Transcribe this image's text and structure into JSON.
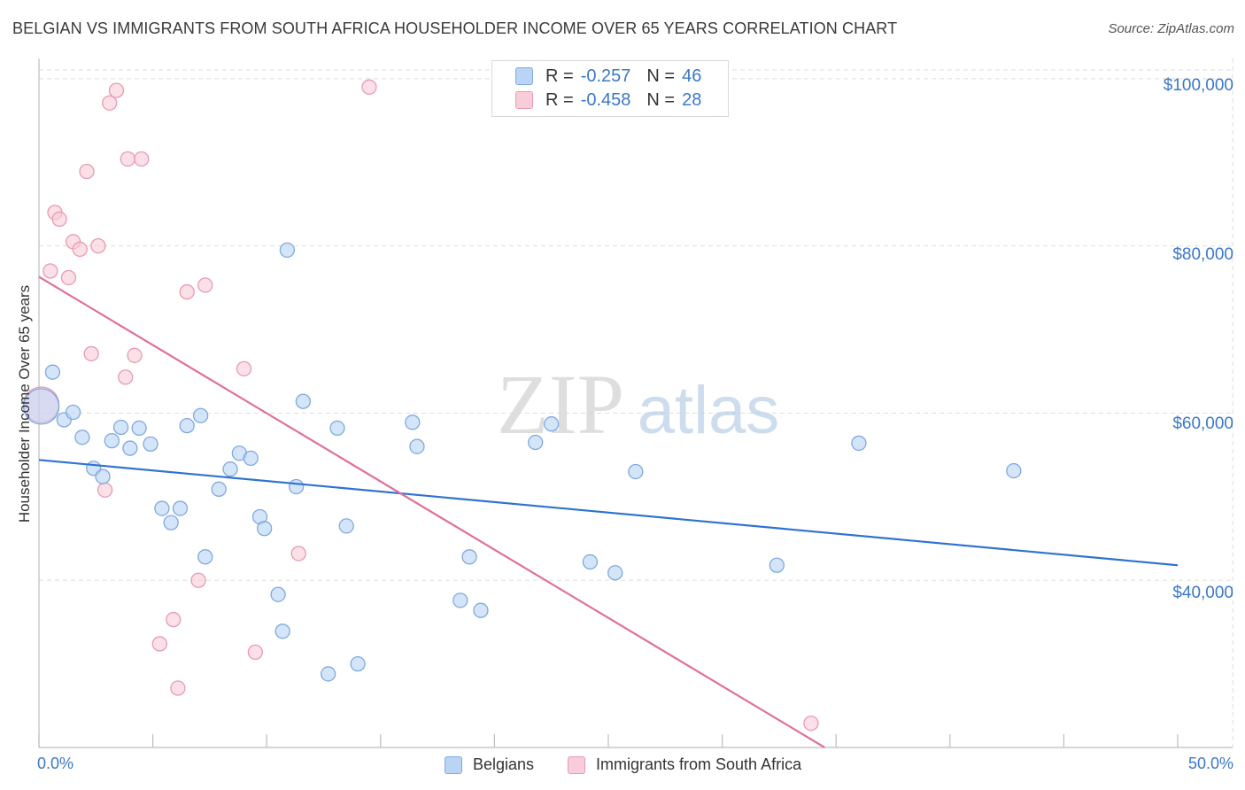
{
  "title": "BELGIAN VS IMMIGRANTS FROM SOUTH AFRICA HOUSEHOLDER INCOME OVER 65 YEARS CORRELATION CHART",
  "source": "Source: ZipAtlas.com",
  "watermark": {
    "zip": "ZIP",
    "atlas": "atlas"
  },
  "legend_top": {
    "rows": [
      {
        "r_label": "R =",
        "r_value": "-0.257",
        "n_label": "N =",
        "n_value": "46"
      },
      {
        "r_label": "R =",
        "r_value": "-0.458",
        "n_label": "N =",
        "n_value": "28"
      }
    ]
  },
  "legend_bottom": {
    "series1": "Belgians",
    "series2": "Immigrants from South Africa"
  },
  "colors": {
    "blue_fill": "#b9d4f5",
    "blue_stroke": "#7fa9de",
    "blue_line": "#2f72d2",
    "pink_fill": "#f9ccd9",
    "pink_stroke": "#e89ab2",
    "pink_line": "#e0709a",
    "tick_text": "#3b78c8"
  },
  "chart_data": {
    "type": "scatter",
    "title": "BELGIAN VS IMMIGRANTS FROM SOUTH AFRICA HOUSEHOLDER INCOME OVER 65 YEARS CORRELATION CHART",
    "xlabel": "",
    "ylabel": "Householder Income Over 65 years",
    "xlim": [
      0,
      50
    ],
    "ylim": [
      20000,
      102000
    ],
    "x_tick_labels": [
      "0.0%",
      "50.0%"
    ],
    "y_ticks": [
      {
        "value": 40000,
        "label": "$40,000"
      },
      {
        "value": 60000,
        "label": "$60,000"
      },
      {
        "value": 80000,
        "label": "$80,000"
      },
      {
        "value": 100000,
        "label": "$100,000"
      }
    ],
    "grid": true,
    "legend_position": "top-center",
    "series": [
      {
        "name": "Belgians",
        "color": "blue",
        "R": -0.257,
        "N": 46,
        "trendline": {
          "x": [
            0,
            50
          ],
          "y": [
            54400,
            41800
          ]
        },
        "points": [
          [
            0.1,
            60800
          ],
          [
            0.6,
            64900
          ],
          [
            1.1,
            59200
          ],
          [
            1.5,
            60100
          ],
          [
            1.9,
            57100
          ],
          [
            2.4,
            53400
          ],
          [
            2.8,
            52400
          ],
          [
            3.2,
            56700
          ],
          [
            3.6,
            58300
          ],
          [
            4.0,
            55800
          ],
          [
            4.4,
            58200
          ],
          [
            4.9,
            56300
          ],
          [
            5.4,
            48600
          ],
          [
            5.8,
            46900
          ],
          [
            6.2,
            48600
          ],
          [
            6.5,
            58500
          ],
          [
            7.1,
            59700
          ],
          [
            7.3,
            42800
          ],
          [
            7.9,
            50900
          ],
          [
            8.4,
            53300
          ],
          [
            8.8,
            55200
          ],
          [
            9.3,
            54600
          ],
          [
            9.7,
            47600
          ],
          [
            9.9,
            46200
          ],
          [
            10.5,
            38300
          ],
          [
            10.7,
            33900
          ],
          [
            10.9,
            79500
          ],
          [
            11.6,
            61400
          ],
          [
            11.3,
            51200
          ],
          [
            12.7,
            28800
          ],
          [
            13.1,
            58200
          ],
          [
            13.5,
            46500
          ],
          [
            14.0,
            30000
          ],
          [
            16.4,
            58900
          ],
          [
            16.6,
            56000
          ],
          [
            18.5,
            37600
          ],
          [
            18.9,
            42800
          ],
          [
            19.4,
            36400
          ],
          [
            21.8,
            56500
          ],
          [
            22.5,
            58700
          ],
          [
            24.2,
            42200
          ],
          [
            25.3,
            40900
          ],
          [
            26.2,
            53000
          ],
          [
            32.4,
            41800
          ],
          [
            36.0,
            56400
          ],
          [
            42.8,
            53100
          ]
        ]
      },
      {
        "name": "Immigrants from South Africa",
        "color": "pink",
        "R": -0.458,
        "N": 28,
        "trendline": {
          "x": [
            0,
            34.5
          ],
          "y": [
            76300,
            20000
          ]
        },
        "points": [
          [
            0.1,
            61000
          ],
          [
            0.5,
            77000
          ],
          [
            0.7,
            84000
          ],
          [
            0.9,
            83200
          ],
          [
            1.3,
            76200
          ],
          [
            1.5,
            80500
          ],
          [
            1.8,
            79600
          ],
          [
            2.1,
            88900
          ],
          [
            2.3,
            67100
          ],
          [
            2.6,
            80000
          ],
          [
            2.9,
            50800
          ],
          [
            3.1,
            97100
          ],
          [
            3.4,
            98600
          ],
          [
            3.8,
            64300
          ],
          [
            3.9,
            90400
          ],
          [
            4.2,
            66900
          ],
          [
            4.5,
            90400
          ],
          [
            5.3,
            32400
          ],
          [
            5.9,
            35300
          ],
          [
            6.1,
            27100
          ],
          [
            6.5,
            74500
          ],
          [
            7.0,
            40000
          ],
          [
            7.3,
            75300
          ],
          [
            9.0,
            65300
          ],
          [
            9.5,
            31400
          ],
          [
            11.4,
            43200
          ],
          [
            14.5,
            99000
          ],
          [
            33.9,
            22900
          ]
        ]
      }
    ]
  }
}
